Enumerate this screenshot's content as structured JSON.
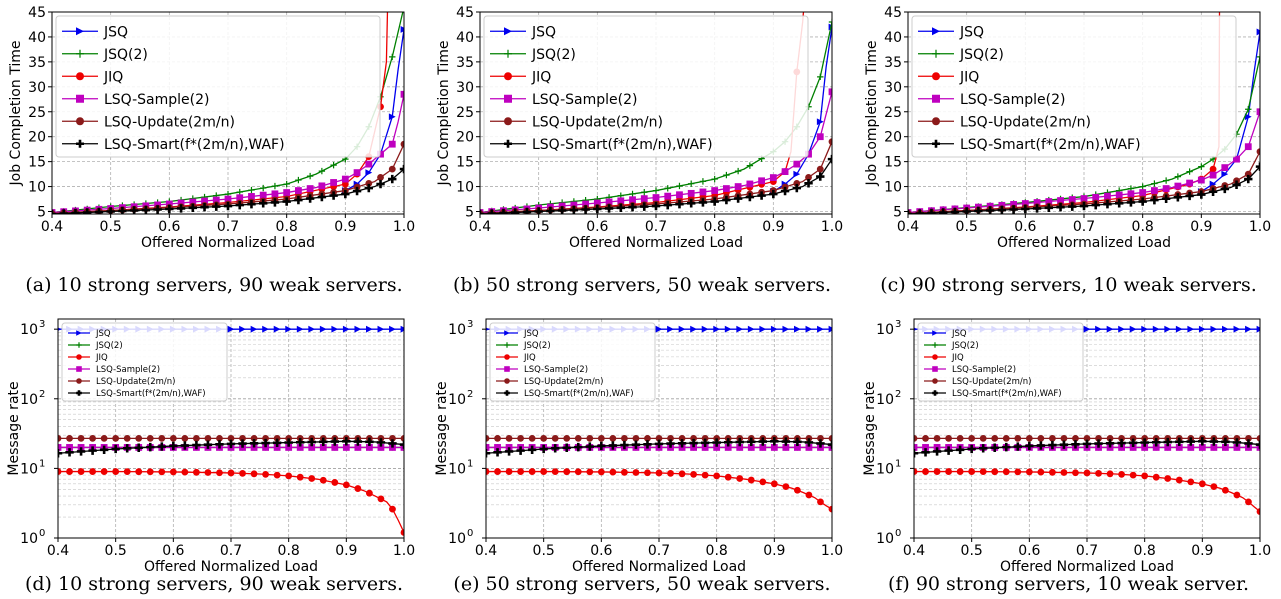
{
  "captions": [
    "(a) 10 strong servers, 90 weak servers.",
    "(b) 50 strong servers, 50 weak servers.",
    "(c) 90 strong servers, 10 weak servers.",
    "(d) 10 strong servers, 90 weak servers.",
    "(e) 50 strong servers, 50 weak servers.",
    "(f) 90 strong servers, 10 weak server."
  ],
  "colors": {
    "JSQ": "#0000ee",
    "JSQ(2)": "#008000",
    "JIQ": "#ee0000",
    "LSQ-Sample(2)": "#bf00bf",
    "LSQ-Update(2m/n)": "#8b1a1a",
    "LSQ-Smart": "#000000"
  },
  "chart_data": [
    {
      "type": "line",
      "xlabel": "Offered Normalized Load",
      "ylabel": "Job Completion Time",
      "xlim": [
        0.4,
        1.0
      ],
      "ylim": [
        4.5,
        45
      ],
      "xticks": [
        "0.4",
        "0.5",
        "0.6",
        "0.7",
        "0.8",
        "0.9",
        "1.0"
      ],
      "yticks": [
        "5",
        "10",
        "15",
        "20",
        "25",
        "30",
        "35",
        "40",
        "45"
      ],
      "grid": true,
      "legend": "top-left",
      "series": [
        {
          "name": "JSQ",
          "x": [
            0.9,
            0.92,
            0.94,
            0.96,
            0.98,
            0.99,
            1.0
          ],
          "y": [
            9.2,
            10.5,
            12.8,
            16.5,
            24,
            33.5,
            41.5
          ]
        },
        {
          "name": "JSQ(2)",
          "x": [
            0.4,
            0.5,
            0.6,
            0.7,
            0.8,
            0.85,
            0.9,
            0.92,
            0.94,
            0.96,
            0.98,
            1.0
          ],
          "y": [
            4.8,
            6.0,
            7.0,
            8.5,
            10.5,
            12.5,
            15.5,
            18,
            22,
            28,
            36,
            46
          ]
        },
        {
          "name": "JIQ",
          "x": [
            0.4,
            0.5,
            0.6,
            0.7,
            0.8,
            0.9,
            0.92,
            0.94,
            0.96,
            0.97,
            0.972
          ],
          "y": [
            4.6,
            5.2,
            5.9,
            6.8,
            8.0,
            10.5,
            12.5,
            16,
            26,
            35,
            46
          ]
        },
        {
          "name": "LSQ-Sample(2)",
          "x": [
            0.4,
            0.5,
            0.6,
            0.7,
            0.8,
            0.85,
            0.9,
            0.92,
            0.94,
            0.96,
            0.98,
            0.99,
            1.0
          ],
          "y": [
            4.8,
            5.6,
            6.5,
            7.5,
            8.8,
            9.8,
            11.5,
            12.8,
            14.5,
            16.5,
            18.5,
            23,
            28.5
          ]
        },
        {
          "name": "LSQ-Update(2m/n)",
          "x": [
            0.4,
            0.5,
            0.6,
            0.7,
            0.8,
            0.9,
            0.95,
            0.98,
            1.0
          ],
          "y": [
            4.6,
            5.2,
            5.8,
            6.5,
            7.5,
            9.2,
            11,
            13.5,
            18.5
          ]
        },
        {
          "name": "LSQ-Smart(f*(2m/n),WAF)",
          "x": [
            0.4,
            0.5,
            0.6,
            0.7,
            0.8,
            0.9,
            0.95,
            0.98,
            1.0
          ],
          "y": [
            4.5,
            5.0,
            5.5,
            6.1,
            7.0,
            8.5,
            10,
            11.5,
            13.5
          ]
        }
      ]
    },
    {
      "type": "line",
      "xlabel": "Offered Normalized Load",
      "ylabel": "Job Completion Time",
      "xlim": [
        0.4,
        1.0
      ],
      "ylim": [
        4.5,
        45
      ],
      "xticks": [
        "0.4",
        "0.5",
        "0.6",
        "0.7",
        "0.8",
        "0.9",
        "1.0"
      ],
      "yticks": [
        "5",
        "10",
        "15",
        "20",
        "25",
        "30",
        "35",
        "40",
        "45"
      ],
      "grid": true,
      "legend": "top-left",
      "series": [
        {
          "name": "JSQ",
          "x": [
            0.9,
            0.92,
            0.94,
            0.96,
            0.98,
            0.99,
            1.0
          ],
          "y": [
            9,
            10.5,
            12.5,
            16.5,
            23,
            34,
            42
          ]
        },
        {
          "name": "JSQ(2)",
          "x": [
            0.4,
            0.5,
            0.6,
            0.7,
            0.8,
            0.85,
            0.9,
            0.92,
            0.94,
            0.96,
            0.98,
            1.0
          ],
          "y": [
            4.8,
            6.3,
            7.5,
            9.2,
            11.5,
            13.5,
            17,
            19,
            22,
            26,
            32,
            43
          ]
        },
        {
          "name": "JIQ",
          "x": [
            0.4,
            0.5,
            0.6,
            0.7,
            0.8,
            0.9,
            0.92,
            0.93,
            0.94,
            0.95,
            0.952
          ],
          "y": [
            4.6,
            5.2,
            5.9,
            6.8,
            8.2,
            11,
            13,
            17,
            33,
            43,
            46
          ]
        },
        {
          "name": "LSQ-Sample(2)",
          "x": [
            0.4,
            0.5,
            0.6,
            0.7,
            0.8,
            0.85,
            0.9,
            0.92,
            0.94,
            0.96,
            0.98,
            1.0
          ],
          "y": [
            4.8,
            5.7,
            6.7,
            7.8,
            9.2,
            10.2,
            11.8,
            13,
            14.5,
            16.5,
            20,
            29
          ]
        },
        {
          "name": "LSQ-Update(2m/n)",
          "x": [
            0.4,
            0.5,
            0.6,
            0.7,
            0.8,
            0.9,
            0.95,
            0.98,
            1.0
          ],
          "y": [
            4.6,
            5.2,
            5.8,
            6.5,
            7.5,
            9.2,
            11,
            13.5,
            19
          ]
        },
        {
          "name": "LSQ-Smart(f*(2m/n),WAF)",
          "x": [
            0.4,
            0.5,
            0.6,
            0.7,
            0.8,
            0.9,
            0.95,
            0.98,
            1.0
          ],
          "y": [
            4.5,
            5.0,
            5.5,
            6.1,
            7.0,
            8.5,
            10,
            12,
            15.5
          ]
        }
      ]
    },
    {
      "type": "line",
      "xlabel": "Offered Normalized Load",
      "ylabel": "Job Completion Time",
      "xlim": [
        0.4,
        1.0
      ],
      "ylim": [
        4.5,
        45
      ],
      "xticks": [
        "0.4",
        "0.5",
        "0.6",
        "0.7",
        "0.8",
        "0.9",
        "1.0"
      ],
      "yticks": [
        "5",
        "10",
        "15",
        "20",
        "25",
        "30",
        "35",
        "40",
        "45"
      ],
      "grid": true,
      "legend": "top-left",
      "series": [
        {
          "name": "JSQ",
          "x": [
            0.9,
            0.92,
            0.94,
            0.96,
            0.98,
            0.99,
            1.0
          ],
          "y": [
            9,
            10.5,
            12.5,
            15.5,
            24,
            33,
            41
          ]
        },
        {
          "name": "JSQ(2)",
          "x": [
            0.4,
            0.5,
            0.6,
            0.7,
            0.8,
            0.85,
            0.9,
            0.92,
            0.94,
            0.96,
            0.98,
            1.0
          ],
          "y": [
            4.8,
            5.8,
            6.8,
            8.0,
            10,
            11.5,
            14,
            15.5,
            17.5,
            20.5,
            25.5,
            36
          ]
        },
        {
          "name": "JIQ",
          "x": [
            0.4,
            0.5,
            0.6,
            0.7,
            0.8,
            0.88,
            0.9,
            0.92,
            0.93,
            0.931
          ],
          "y": [
            4.6,
            5.2,
            5.9,
            6.8,
            8.2,
            10.5,
            11.5,
            13.5,
            18,
            46
          ]
        },
        {
          "name": "LSQ-Sample(2)",
          "x": [
            0.4,
            0.5,
            0.6,
            0.7,
            0.8,
            0.85,
            0.9,
            0.92,
            0.94,
            0.96,
            0.98,
            1.0
          ],
          "y": [
            4.8,
            5.7,
            6.6,
            7.6,
            8.8,
            9.8,
            11.3,
            12.3,
            13.8,
            15.5,
            18,
            25
          ]
        },
        {
          "name": "LSQ-Update(2m/n)",
          "x": [
            0.4,
            0.5,
            0.6,
            0.7,
            0.8,
            0.9,
            0.95,
            0.98,
            1.0
          ],
          "y": [
            4.6,
            5.2,
            5.8,
            6.5,
            7.5,
            9,
            10.5,
            12.5,
            17
          ]
        },
        {
          "name": "LSQ-Smart(f*(2m/n),WAF)",
          "x": [
            0.4,
            0.5,
            0.6,
            0.7,
            0.8,
            0.9,
            0.95,
            0.98,
            1.0
          ],
          "y": [
            4.5,
            5.0,
            5.5,
            6.1,
            7.0,
            8.4,
            9.8,
            11.5,
            14
          ]
        }
      ]
    },
    {
      "type": "line",
      "xlabel": "Offered Normalized Load",
      "ylabel": "Message rate",
      "xscale": "linear",
      "yscale": "log",
      "xlim": [
        0.4,
        1.0
      ],
      "ylim": [
        1,
        1400
      ],
      "xticks": [
        "0.4",
        "0.5",
        "0.6",
        "0.7",
        "0.8",
        "0.9",
        "1.0"
      ],
      "grid": true,
      "legend": "top-left",
      "series": [
        {
          "name": "JSQ",
          "x": [
            0.4,
            1.0
          ],
          "y": [
            1000,
            1000
          ]
        },
        {
          "name": "JSQ(2)",
          "x": [
            0.4,
            1.0
          ],
          "y": [
            20,
            20
          ]
        },
        {
          "name": "JIQ",
          "x": [
            0.4,
            0.5,
            0.6,
            0.7,
            0.75,
            0.8,
            0.85,
            0.9,
            0.93,
            0.95,
            0.97,
            0.98,
            0.99,
            1.0
          ],
          "y": [
            9,
            9,
            8.9,
            8.6,
            8.3,
            7.8,
            7.0,
            5.8,
            4.8,
            4.0,
            3.3,
            2.6,
            1.8,
            1.2
          ]
        },
        {
          "name": "LSQ-Sample(2)",
          "x": [
            0.4,
            1.0
          ],
          "y": [
            20,
            20
          ]
        },
        {
          "name": "LSQ-Update(2m/n)",
          "x": [
            0.4,
            1.0
          ],
          "y": [
            27,
            27
          ]
        },
        {
          "name": "LSQ-Smart(f*(2m/n),WAF)",
          "x": [
            0.4,
            0.5,
            0.6,
            0.7,
            0.8,
            0.9,
            0.95,
            1.0
          ],
          "y": [
            16.5,
            19,
            21,
            22.5,
            23.5,
            24.5,
            24,
            22
          ]
        }
      ]
    },
    {
      "type": "line",
      "xlabel": "Offered Normalized Load",
      "ylabel": "Message rate",
      "xscale": "linear",
      "yscale": "log",
      "xlim": [
        0.4,
        1.0
      ],
      "ylim": [
        1,
        1400
      ],
      "xticks": [
        "0.4",
        "0.5",
        "0.6",
        "0.7",
        "0.8",
        "0.9",
        "1.0"
      ],
      "grid": true,
      "legend": "top-left",
      "series": [
        {
          "name": "JSQ",
          "x": [
            0.4,
            1.0
          ],
          "y": [
            1000,
            1000
          ]
        },
        {
          "name": "JSQ(2)",
          "x": [
            0.4,
            1.0
          ],
          "y": [
            20,
            20
          ]
        },
        {
          "name": "JIQ",
          "x": [
            0.4,
            0.5,
            0.6,
            0.7,
            0.75,
            0.8,
            0.85,
            0.9,
            0.93,
            0.95,
            0.97,
            0.98,
            0.99,
            1.0
          ],
          "y": [
            9,
            9,
            8.9,
            8.6,
            8.3,
            7.8,
            7.0,
            6.0,
            5.2,
            4.5,
            3.8,
            3.3,
            2.9,
            2.6
          ]
        },
        {
          "name": "LSQ-Sample(2)",
          "x": [
            0.4,
            1.0
          ],
          "y": [
            20,
            20
          ]
        },
        {
          "name": "LSQ-Update(2m/n)",
          "x": [
            0.4,
            1.0
          ],
          "y": [
            27,
            27
          ]
        },
        {
          "name": "LSQ-Smart(f*(2m/n),WAF)",
          "x": [
            0.4,
            0.5,
            0.6,
            0.7,
            0.8,
            0.9,
            0.95,
            1.0
          ],
          "y": [
            16.5,
            19,
            21,
            22.5,
            23.5,
            24.5,
            24,
            22
          ]
        }
      ]
    },
    {
      "type": "line",
      "xlabel": "Offered Normalized Load",
      "ylabel": "Message rate",
      "xscale": "linear",
      "yscale": "log",
      "xlim": [
        0.4,
        1.0
      ],
      "ylim": [
        1,
        1400
      ],
      "xticks": [
        "0.4",
        "0.5",
        "0.6",
        "0.7",
        "0.8",
        "0.9",
        "1.0"
      ],
      "grid": true,
      "legend": "top-left",
      "series": [
        {
          "name": "JSQ",
          "x": [
            0.4,
            1.0
          ],
          "y": [
            1000,
            1000
          ]
        },
        {
          "name": "JSQ(2)",
          "x": [
            0.4,
            1.0
          ],
          "y": [
            20,
            20
          ]
        },
        {
          "name": "JIQ",
          "x": [
            0.4,
            0.5,
            0.6,
            0.7,
            0.75,
            0.8,
            0.85,
            0.9,
            0.93,
            0.95,
            0.97,
            0.98,
            0.99,
            1.0
          ],
          "y": [
            9,
            9,
            8.9,
            8.6,
            8.3,
            7.8,
            7.0,
            6.0,
            5.2,
            4.5,
            3.8,
            3.3,
            2.8,
            2.4
          ]
        },
        {
          "name": "LSQ-Sample(2)",
          "x": [
            0.4,
            1.0
          ],
          "y": [
            20,
            20
          ]
        },
        {
          "name": "LSQ-Update(2m/n)",
          "x": [
            0.4,
            1.0
          ],
          "y": [
            27,
            27
          ]
        },
        {
          "name": "LSQ-Smart(f*(2m/n),WAF)",
          "x": [
            0.4,
            0.5,
            0.6,
            0.7,
            0.8,
            0.9,
            0.95,
            1.0
          ],
          "y": [
            16.5,
            19,
            21,
            22.5,
            23.5,
            24.5,
            24,
            22
          ]
        }
      ]
    }
  ]
}
